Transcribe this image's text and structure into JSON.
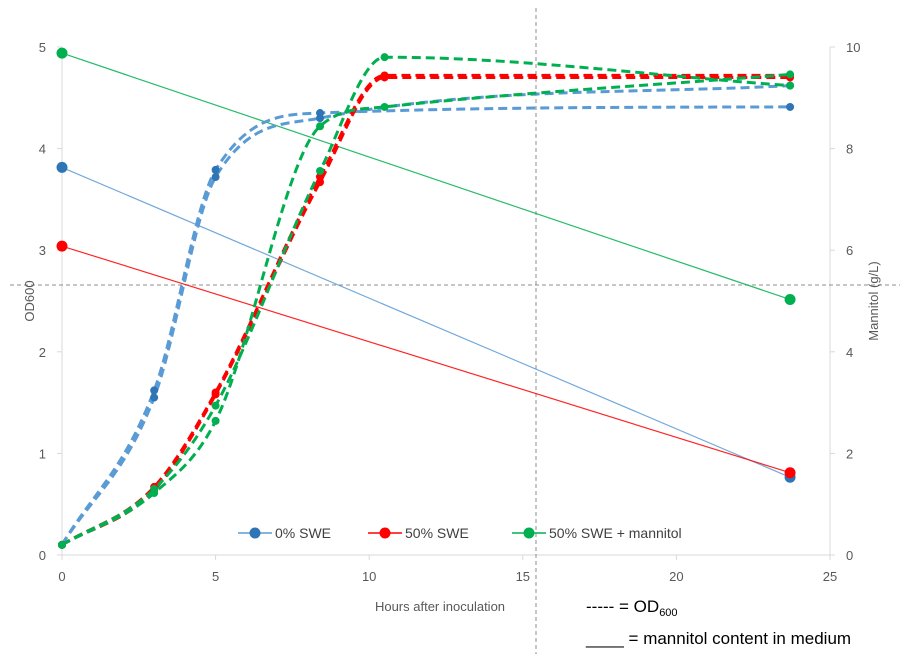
{
  "chart_data": {
    "type": "line",
    "xlabel": "Hours after inoculation",
    "ylabel_left": "OD600",
    "ylabel_right": "Mannitol (g/L)",
    "xlim": [
      0,
      25
    ],
    "ylim_left": [
      0,
      5
    ],
    "ylim_right": [
      0,
      10
    ],
    "x_ticks": [
      "0",
      "5",
      "10",
      "15",
      "20",
      "25"
    ],
    "y_left_ticks": [
      "0",
      "1",
      "2",
      "3",
      "4",
      "5"
    ],
    "y_right_ticks": [
      "0",
      "2",
      "4",
      "6",
      "8",
      "10"
    ],
    "grid": false,
    "legend_position": "bottom-center",
    "series": [
      {
        "name": "0% SWE",
        "color": "#5b9bd5",
        "marker_color": "#2e75b6",
        "od600_replicates": [
          {
            "x": [
              0,
              3,
              5,
              8.4,
              23.7
            ],
            "y": [
              0.1,
              1.62,
              3.79,
              4.35,
              4.41
            ]
          },
          {
            "x": [
              0,
              3,
              5,
              8.4,
              23.7
            ],
            "y": [
              0.1,
              1.55,
              3.72,
              4.3,
              4.62
            ]
          }
        ],
        "mannitol": {
          "x": [
            0,
            23.7
          ],
          "y": [
            7.63,
            1.53
          ]
        }
      },
      {
        "name": "50% SWE",
        "color": "#ff0000",
        "marker_color": "#ff0000",
        "od600_replicates": [
          {
            "x": [
              0,
              3,
              5,
              8.4,
              10.5,
              23.7
            ],
            "y": [
              0.1,
              0.67,
              1.6,
              3.72,
              4.72,
              4.72
            ]
          },
          {
            "x": [
              0,
              3,
              5,
              8.4,
              10.5,
              23.7
            ],
            "y": [
              0.1,
              0.64,
              1.58,
              3.67,
              4.7,
              4.7
            ]
          }
        ],
        "mannitol": {
          "x": [
            0,
            23.7
          ],
          "y": [
            6.08,
            1.62
          ]
        }
      },
      {
        "name": "50% SWE + mannitol",
        "color": "#00b050",
        "marker_color": "#00b050",
        "od600_replicates": [
          {
            "x": [
              0,
              3,
              5,
              8.4,
              10.5,
              23.7
            ],
            "y": [
              0.1,
              0.65,
              1.47,
              3.78,
              4.9,
              4.62
            ]
          },
          {
            "x": [
              0,
              3,
              5,
              8.4,
              10.5,
              23.7
            ],
            "y": [
              0.1,
              0.61,
              1.32,
              4.22,
              4.41,
              4.73
            ]
          }
        ],
        "mannitol": {
          "x": [
            0,
            23.7
          ],
          "y": [
            9.88,
            5.03
          ]
        }
      }
    ]
  },
  "notes": {
    "od_line_label": "----- = OD",
    "od_line_sub": "600",
    "mannitol_line_label": "____ = mannitol content in medium"
  }
}
